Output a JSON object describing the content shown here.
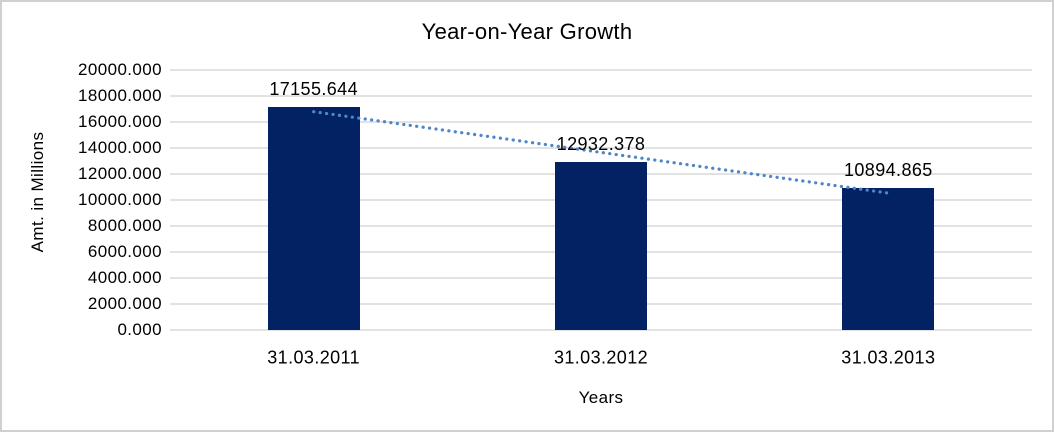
{
  "chart_data": {
    "type": "bar",
    "title": "Year-on-Year Growth",
    "xlabel": "Years",
    "ylabel": "Amt. in Millions",
    "categories": [
      "31.03.2011",
      "31.03.2012",
      "31.03.2013"
    ],
    "values": [
      17155.644,
      12932.378,
      10894.865
    ],
    "data_labels": [
      "17155.644",
      "12932.378",
      "10894.865"
    ],
    "ylim": [
      0,
      20000
    ],
    "ytick_interval": 2000,
    "ytick_labels": [
      "20000.000",
      "18000.000",
      "16000.000",
      "14000.000",
      "12000.000",
      "10000.000",
      "8000.000",
      "6000.000",
      "4000.000",
      "2000.000",
      "0.000"
    ],
    "grid": "horizontal",
    "legend": "none",
    "trendline": {
      "type": "linear",
      "style": "dotted"
    },
    "colors": {
      "bar": "#022264",
      "trendline": "#4e86c8",
      "gridline": "#d9d9d9",
      "text": "#000000",
      "chart_border": "#d0d0d0",
      "background": "#ffffff"
    }
  }
}
